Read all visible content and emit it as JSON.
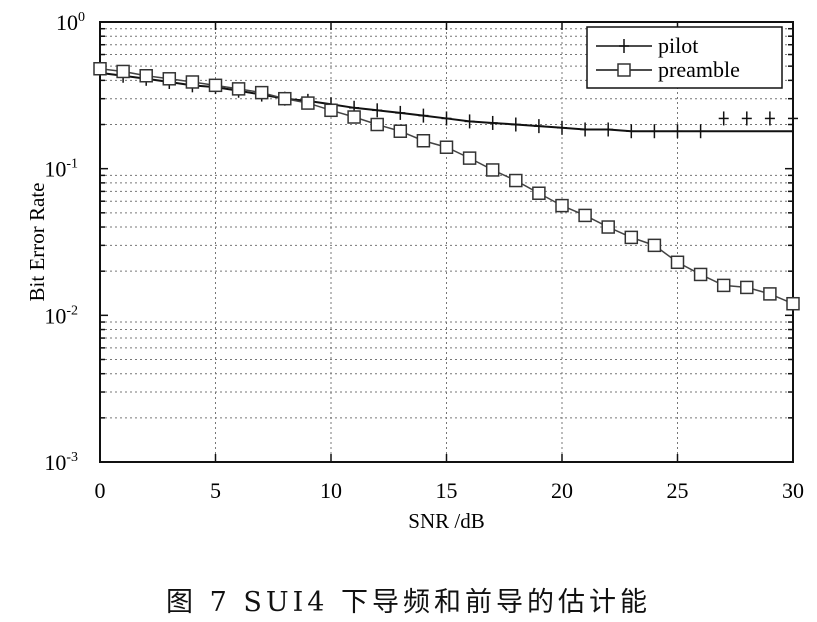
{
  "chart_data": {
    "type": "line",
    "title": "",
    "xlabel": "SNR /dB",
    "ylabel": "Bit Error Rate",
    "xlim": [
      0,
      30
    ],
    "ylim": [
      0.001,
      1
    ],
    "yscale": "log",
    "grid": true,
    "legend_position": "top-right",
    "x_ticks": [
      "0",
      "5",
      "10",
      "15",
      "20",
      "25",
      "30"
    ],
    "y_ticks": [
      {
        "base": "10",
        "exp": "0"
      },
      {
        "base": "10",
        "exp": "-1"
      },
      {
        "base": "10",
        "exp": "-2"
      },
      {
        "base": "10",
        "exp": "-3"
      }
    ],
    "x": [
      0,
      1,
      2,
      3,
      4,
      5,
      6,
      7,
      8,
      9,
      10,
      11,
      12,
      13,
      14,
      15,
      16,
      17,
      18,
      19,
      20,
      21,
      22,
      23,
      24,
      25,
      26,
      27,
      28,
      29,
      30
    ],
    "series": [
      {
        "name": "pilot",
        "marker": "plus",
        "values": [
          0.45,
          0.43,
          0.41,
          0.39,
          0.37,
          0.36,
          0.34,
          0.32,
          0.3,
          0.29,
          0.275,
          0.26,
          0.25,
          0.24,
          0.23,
          0.22,
          0.21,
          0.205,
          0.2,
          0.195,
          0.19,
          0.185,
          0.185,
          0.18,
          0.18,
          0.18,
          0.18,
          0.18,
          0.18,
          0.18,
          0.18
        ],
        "marker_values": [
          0.45,
          0.43,
          0.41,
          0.39,
          0.37,
          0.36,
          0.34,
          0.32,
          0.3,
          0.29,
          0.275,
          0.26,
          0.25,
          0.24,
          0.23,
          0.22,
          0.21,
          0.205,
          0.2,
          0.195,
          0.19,
          0.185,
          0.185,
          0.18,
          0.18,
          0.18,
          0.18,
          0.22,
          0.22,
          0.22,
          0.22
        ]
      },
      {
        "name": "preamble",
        "marker": "square",
        "values": [
          0.48,
          0.46,
          0.43,
          0.41,
          0.39,
          0.37,
          0.35,
          0.33,
          0.3,
          0.28,
          0.25,
          0.225,
          0.2,
          0.18,
          0.155,
          0.14,
          0.118,
          0.098,
          0.083,
          0.068,
          0.056,
          0.048,
          0.04,
          0.034,
          0.03,
          0.023,
          0.019,
          0.016,
          0.0155,
          0.014,
          0.012
        ]
      }
    ]
  },
  "caption": "图 7   SUI4 下导频和前导的估计能"
}
